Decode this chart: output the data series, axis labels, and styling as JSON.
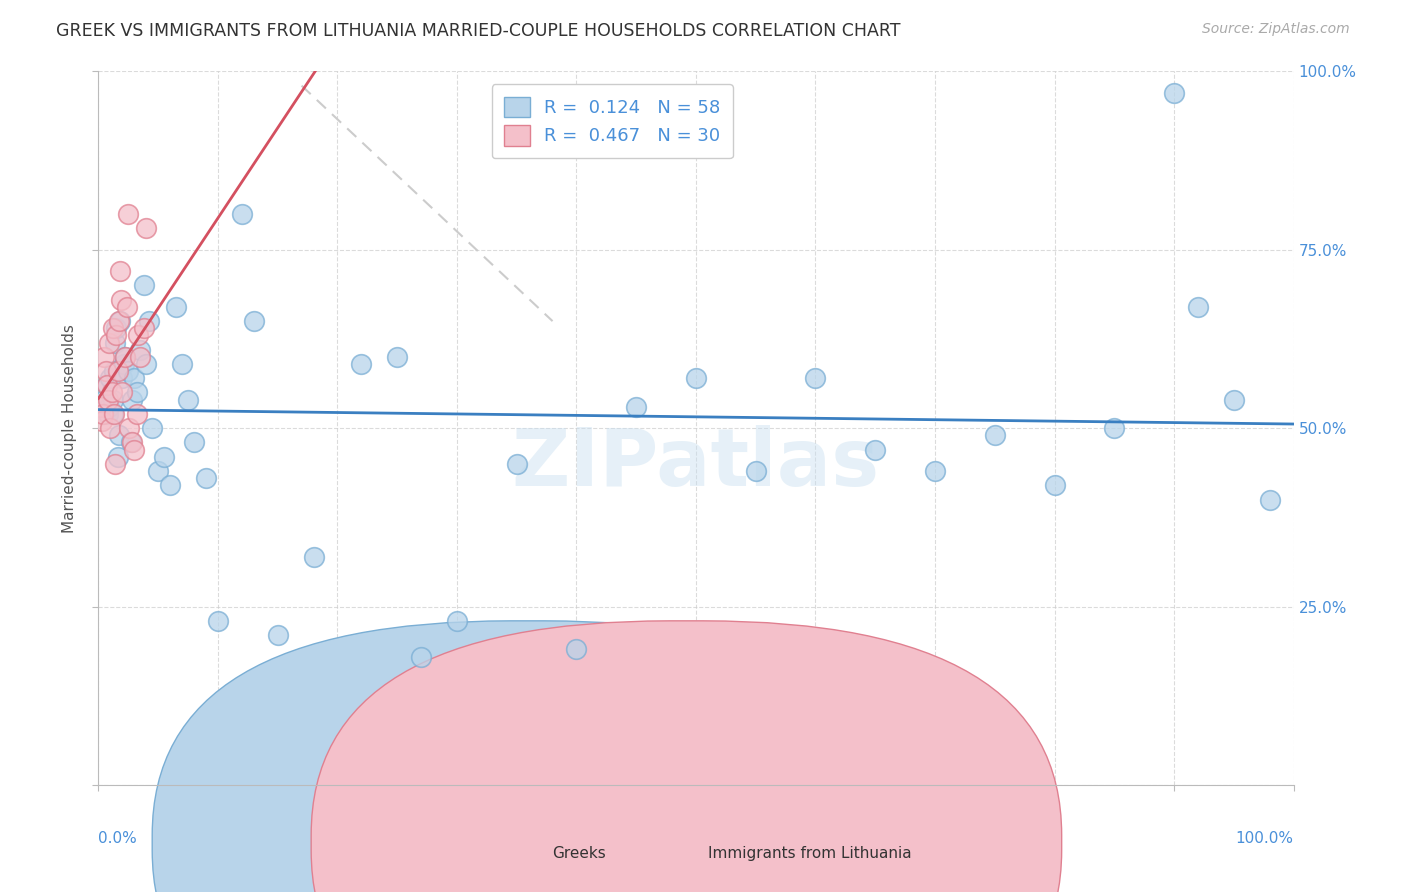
{
  "title": "GREEK VS IMMIGRANTS FROM LITHUANIA MARRIED-COUPLE HOUSEHOLDS CORRELATION CHART",
  "source": "Source: ZipAtlas.com",
  "ylabel": "Married-couple Households",
  "xlim": [
    0,
    1.0
  ],
  "ylim": [
    0,
    1.0
  ],
  "ytick_positions": [
    0.0,
    0.25,
    0.5,
    0.75,
    1.0
  ],
  "ytick_labels": [
    "",
    "25.0%",
    "50.0%",
    "75.0%",
    "100.0%"
  ],
  "greeks_R": 0.124,
  "greeks_N": 58,
  "lithuania_R": 0.467,
  "lithuania_N": 30,
  "blue_fill": "#b8d4ea",
  "blue_edge": "#7aaed4",
  "pink_fill": "#f4c0ca",
  "pink_edge": "#e08090",
  "blue_line_color": "#3a7fc1",
  "pink_line_color": "#d45060",
  "tick_color": "#4a90d9",
  "grid_color": "#cccccc",
  "greeks_x": [
    0.005,
    0.007,
    0.008,
    0.009,
    0.01,
    0.012,
    0.012,
    0.013,
    0.014,
    0.015,
    0.016,
    0.017,
    0.018,
    0.02,
    0.021,
    0.022,
    0.025,
    0.027,
    0.028,
    0.03,
    0.032,
    0.035,
    0.038,
    0.04,
    0.042,
    0.045,
    0.05,
    0.055,
    0.06,
    0.065,
    0.07,
    0.075,
    0.08,
    0.09,
    0.1,
    0.12,
    0.13,
    0.15,
    0.18,
    0.22,
    0.25,
    0.27,
    0.3,
    0.35,
    0.4,
    0.45,
    0.5,
    0.55,
    0.6,
    0.65,
    0.7,
    0.75,
    0.8,
    0.85,
    0.9,
    0.92,
    0.95,
    0.98
  ],
  "greeks_y": [
    0.54,
    0.56,
    0.52,
    0.53,
    0.57,
    0.52,
    0.54,
    0.58,
    0.62,
    0.64,
    0.46,
    0.49,
    0.65,
    0.57,
    0.59,
    0.6,
    0.58,
    0.48,
    0.54,
    0.57,
    0.55,
    0.61,
    0.7,
    0.59,
    0.65,
    0.5,
    0.44,
    0.46,
    0.42,
    0.67,
    0.59,
    0.54,
    0.48,
    0.43,
    0.23,
    0.8,
    0.65,
    0.21,
    0.32,
    0.59,
    0.6,
    0.18,
    0.23,
    0.45,
    0.19,
    0.53,
    0.57,
    0.44,
    0.57,
    0.47,
    0.44,
    0.49,
    0.42,
    0.5,
    0.97,
    0.67,
    0.54,
    0.4
  ],
  "lithuania_x": [
    0.002,
    0.003,
    0.004,
    0.005,
    0.006,
    0.007,
    0.008,
    0.009,
    0.01,
    0.011,
    0.012,
    0.013,
    0.014,
    0.015,
    0.016,
    0.017,
    0.018,
    0.019,
    0.02,
    0.022,
    0.024,
    0.025,
    0.026,
    0.028,
    0.03,
    0.032,
    0.033,
    0.035,
    0.038,
    0.04
  ],
  "lithuania_y": [
    0.53,
    0.51,
    0.52,
    0.6,
    0.58,
    0.56,
    0.54,
    0.62,
    0.5,
    0.55,
    0.64,
    0.52,
    0.45,
    0.63,
    0.58,
    0.65,
    0.72,
    0.68,
    0.55,
    0.6,
    0.67,
    0.8,
    0.5,
    0.48,
    0.47,
    0.52,
    0.63,
    0.6,
    0.64,
    0.78
  ],
  "watermark": "ZIPatlas",
  "background_color": "#ffffff"
}
